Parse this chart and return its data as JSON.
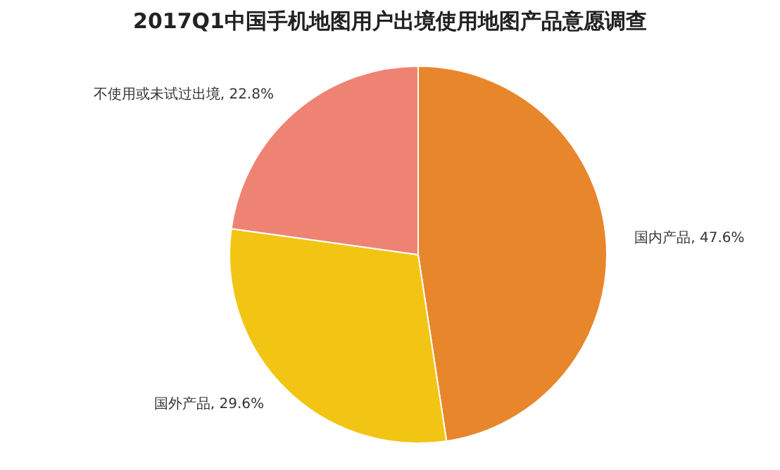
{
  "chart_data": {
    "type": "pie",
    "title": "2017Q1中国手机地图用户出境使用地图产品意愿调查",
    "categories": [
      "国内产品",
      "国外产品",
      "不使用或未试过出境"
    ],
    "values": [
      47.6,
      29.6,
      22.8
    ],
    "value_labels": [
      "47.6%",
      "29.6%",
      "22.8%"
    ],
    "colors": [
      "#e8862c",
      "#f2c515",
      "#ef8373"
    ],
    "legend": false
  }
}
